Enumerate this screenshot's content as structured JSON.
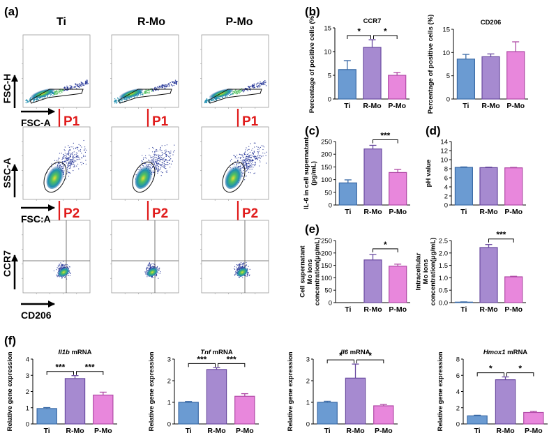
{
  "colors": {
    "ti": "#6b9bd2",
    "rmo": "#a68ad0",
    "pmo": "#e887dc",
    "ti_edge": "#3a6aa6",
    "rmo_edge": "#6a4aa0",
    "pmo_edge": "#b04aa6",
    "arrow": "#e01b1b",
    "gate": "#111111"
  },
  "flow": {
    "panel_label": "(a)",
    "groups": [
      "Ti",
      "R-Mo",
      "P-Mo"
    ],
    "gates": [
      "P1",
      "P2"
    ],
    "rows": [
      {
        "y_label": "FSC-H",
        "x_label": "FSC-A"
      },
      {
        "y_label": "SSC-A",
        "x_label": "FSC:A"
      },
      {
        "y_label": "CCR7",
        "x_label": "CD206"
      }
    ]
  },
  "panel_labels": {
    "b": "(b)",
    "c": "(c)",
    "d": "(d)",
    "e": "(e)",
    "f": "(f)"
  },
  "chart_data": [
    {
      "id": "ccr7",
      "type": "bar",
      "title": "CCR7",
      "title_italic": false,
      "categories": [
        "Ti",
        "R-Mo",
        "P-Mo"
      ],
      "values": [
        6.2,
        10.9,
        5.0
      ],
      "errors": [
        1.9,
        1.6,
        0.6
      ],
      "ylabel": [
        "Percentage of positive cells (%)"
      ],
      "ylim": [
        0,
        15
      ],
      "yticks": [
        0,
        5,
        10,
        15
      ],
      "sig": [
        {
          "a": 0,
          "b": 1,
          "label": "*"
        },
        {
          "a": 1,
          "b": 2,
          "label": "*"
        }
      ]
    },
    {
      "id": "cd206",
      "type": "bar",
      "title": "CD206",
      "title_italic": false,
      "categories": [
        "Ti",
        "R-Mo",
        "P-Mo"
      ],
      "values": [
        8.6,
        9.1,
        10.2
      ],
      "errors": [
        1.0,
        0.6,
        2.1
      ],
      "ylabel": [
        "Percentage of positive cells (%)"
      ],
      "ylim": [
        0,
        15
      ],
      "yticks": [
        0,
        5,
        10,
        15
      ],
      "sig": []
    },
    {
      "id": "il6",
      "type": "bar",
      "title": "",
      "title_italic": false,
      "categories": [
        "Ti",
        "R-Mo",
        "P-Mo"
      ],
      "values": [
        87,
        221,
        128
      ],
      "errors": [
        12,
        14,
        12
      ],
      "ylabel": [
        "IL-6 in cell supernatant",
        "(pg/mL)"
      ],
      "ylim": [
        0,
        250
      ],
      "yticks": [
        0,
        50,
        100,
        150,
        200,
        250
      ],
      "sig": [
        {
          "a": 1,
          "b": 2,
          "label": "***"
        }
      ]
    },
    {
      "id": "ph",
      "type": "bar",
      "title": "",
      "title_italic": false,
      "categories": [
        "Ti",
        "R-Mo",
        "P-Mo"
      ],
      "values": [
        8.3,
        8.25,
        8.2
      ],
      "errors": [
        0.1,
        0.1,
        0.1
      ],
      "ylabel": [
        "pH value"
      ],
      "ylim": [
        0,
        14
      ],
      "yticks": [
        0,
        2,
        4,
        6,
        8,
        10,
        12,
        14
      ],
      "sig": []
    },
    {
      "id": "mo_super",
      "type": "bar",
      "title": "",
      "title_italic": false,
      "categories": [
        "Ti",
        "R-Mo",
        "P-Mo"
      ],
      "values": [
        0,
        172,
        147
      ],
      "errors": [
        0,
        22,
        8
      ],
      "ylabel": [
        "Cell supernatant",
        "Mo ions",
        "concentration(μg/mL)"
      ],
      "ylim": [
        0,
        250
      ],
      "yticks": [
        0,
        50,
        100,
        150,
        200,
        250
      ],
      "sig": [
        {
          "a": 1,
          "b": 2,
          "label": "*"
        }
      ]
    },
    {
      "id": "mo_intra",
      "type": "bar",
      "title": "",
      "title_italic": false,
      "categories": [
        "Ti",
        "R-Mo",
        "P-Mo"
      ],
      "values": [
        0.02,
        2.22,
        1.04
      ],
      "errors": [
        0.01,
        0.12,
        0.02
      ],
      "ylabel": [
        "Intracellular",
        "Mo ions",
        "concentration(μg/mL)"
      ],
      "ylim": [
        0,
        2.5
      ],
      "yticks": [
        0.0,
        0.5,
        1.0,
        1.5,
        2.0,
        2.5
      ],
      "sig": [
        {
          "a": 1,
          "b": 2,
          "label": "***"
        }
      ]
    },
    {
      "id": "il1b",
      "type": "bar",
      "title": "Il1b",
      "title_suffix": " mRNA",
      "title_italic": true,
      "categories": [
        "Ti",
        "R-Mo",
        "P-Mo"
      ],
      "values": [
        0.95,
        2.8,
        1.78
      ],
      "errors": [
        0.06,
        0.18,
        0.18
      ],
      "ylabel": [
        "Relative gene expression"
      ],
      "ylim": [
        0,
        4
      ],
      "yticks": [
        0,
        1,
        2,
        3,
        4
      ],
      "sig": [
        {
          "a": 0,
          "b": 1,
          "label": "***"
        },
        {
          "a": 1,
          "b": 2,
          "label": "***"
        }
      ]
    },
    {
      "id": "tnf",
      "type": "bar",
      "title": "Tnf",
      "title_suffix": " mRNA",
      "title_italic": true,
      "categories": [
        "Ti",
        "R-Mo",
        "P-Mo"
      ],
      "values": [
        1.0,
        2.52,
        1.28
      ],
      "errors": [
        0.04,
        0.08,
        0.12
      ],
      "ylabel": [
        "Relative gene expression"
      ],
      "ylim": [
        0,
        3
      ],
      "yticks": [
        0,
        1,
        2,
        3
      ],
      "sig": [
        {
          "a": 0,
          "b": 1,
          "label": "***"
        },
        {
          "a": 1,
          "b": 2,
          "label": "***"
        }
      ]
    },
    {
      "id": "il6m",
      "type": "bar",
      "title": "Il6",
      "title_suffix": " mRNA",
      "title_italic": true,
      "categories": [
        "Ti",
        "R-Mo",
        "P-Mo"
      ],
      "values": [
        1.0,
        2.12,
        0.84
      ],
      "errors": [
        0.05,
        0.65,
        0.06
      ],
      "ylabel": [
        "Relative gene expression"
      ],
      "ylim": [
        0,
        3
      ],
      "yticks": [
        0,
        1,
        2,
        3
      ],
      "sig": [
        {
          "a": 0,
          "b": 1,
          "label": "*"
        },
        {
          "a": 1,
          "b": 2,
          "label": "*"
        }
      ]
    },
    {
      "id": "hmox1",
      "type": "bar",
      "title": "Hmox1",
      "title_suffix": " mRNA",
      "title_italic": true,
      "categories": [
        "Ti",
        "R-Mo",
        "P-Mo"
      ],
      "values": [
        1.0,
        5.45,
        1.42
      ],
      "errors": [
        0.08,
        0.35,
        0.12
      ],
      "ylabel": [
        "Relative gene expression"
      ],
      "ylim": [
        0,
        8
      ],
      "yticks": [
        0,
        2,
        4,
        6,
        8
      ],
      "sig": [
        {
          "a": 0,
          "b": 1,
          "label": "*"
        },
        {
          "a": 1,
          "b": 2,
          "label": "*"
        }
      ]
    }
  ]
}
